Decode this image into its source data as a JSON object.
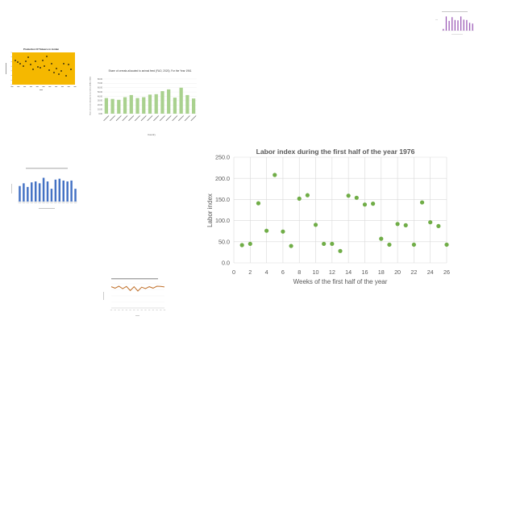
{
  "chart_data": [
    {
      "type": "scatter",
      "title": "Labor index during the first half of the year 1976",
      "xlabel": "Weeks of the first half of the year",
      "ylabel": "Labor index",
      "xlim": [
        0,
        26
      ],
      "ylim": [
        0,
        250
      ],
      "xticks": [
        "0",
        "2",
        "4",
        "6",
        "8",
        "10",
        "12",
        "14",
        "16",
        "18",
        "20",
        "22",
        "24",
        "26"
      ],
      "yticks": [
        "0.0",
        "50.0",
        "100.0",
        "150.0",
        "200.0",
        "250.0"
      ],
      "grid": true,
      "point_color": "#70ad47",
      "points": [
        {
          "x": 1,
          "y": 42
        },
        {
          "x": 2,
          "y": 45
        },
        {
          "x": 3,
          "y": 141
        },
        {
          "x": 4,
          "y": 76
        },
        {
          "x": 5,
          "y": 208
        },
        {
          "x": 6,
          "y": 74
        },
        {
          "x": 7,
          "y": 40
        },
        {
          "x": 8,
          "y": 152
        },
        {
          "x": 9,
          "y": 160
        },
        {
          "x": 10,
          "y": 90
        },
        {
          "x": 11,
          "y": 45
        },
        {
          "x": 12,
          "y": 45
        },
        {
          "x": 13,
          "y": 28
        },
        {
          "x": 14,
          "y": 159
        },
        {
          "x": 15,
          "y": 154
        },
        {
          "x": 16,
          "y": 138
        },
        {
          "x": 17,
          "y": 140
        },
        {
          "x": 18,
          "y": 57
        },
        {
          "x": 19,
          "y": 43
        },
        {
          "x": 20,
          "y": 92
        },
        {
          "x": 21,
          "y": 89
        },
        {
          "x": 22,
          "y": 43
        },
        {
          "x": 23,
          "y": 143
        },
        {
          "x": 24,
          "y": 96
        },
        {
          "x": 25,
          "y": 87
        },
        {
          "x": 26,
          "y": 43
        }
      ]
    },
    {
      "type": "bar",
      "title": "Share of cereals allocated to animal feed (FAO, 2020). For the Year 1961",
      "xlabel": "Country",
      "ylabel": "Share of cereals allocated to animal feed (FAO, 2020)",
      "ylim": [
        0,
        80
      ],
      "yticks": [
        "0.00",
        "10.00",
        "20.00",
        "30.00",
        "40.00",
        "50.00",
        "60.00",
        "70.00",
        "80.00"
      ],
      "bar_color": "#a9d18e",
      "values": [
        36,
        34,
        32,
        38,
        43,
        36,
        38,
        44,
        45,
        52,
        56,
        37,
        60,
        43,
        35
      ]
    },
    {
      "type": "scatter",
      "title": "Production Of Tobacco in Jordan",
      "background": "#f5b800",
      "point_color": "#111111"
    },
    {
      "type": "bar",
      "bar_color": "#4472c4",
      "values": [
        34,
        40,
        32,
        42,
        44,
        40,
        52,
        44,
        28,
        48,
        50,
        46,
        44,
        46,
        28
      ]
    },
    {
      "type": "line",
      "line_color": "#c0702a",
      "values": [
        68,
        62,
        70,
        60,
        69,
        52,
        68,
        50,
        66,
        60,
        68,
        62,
        70,
        69,
        67
      ]
    },
    {
      "type": "bar",
      "bar_color": "#9b59b6",
      "values": [
        10,
        80,
        55,
        76,
        60,
        58,
        80,
        62,
        60,
        44,
        40
      ]
    }
  ]
}
